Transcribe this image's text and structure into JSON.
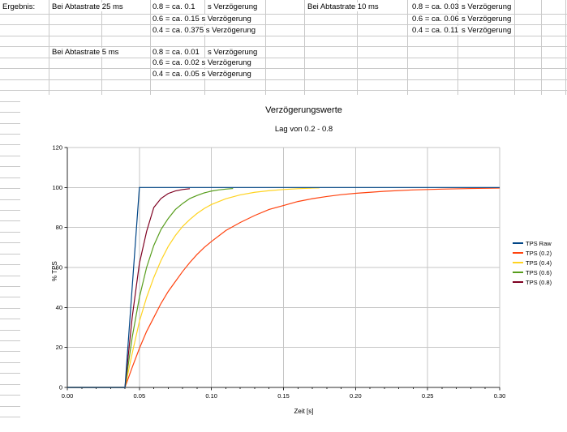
{
  "sheet": {
    "cells": [
      {
        "id": "ergebnis",
        "text": "Ergebnis:"
      },
      {
        "id": "rate25",
        "text": "Bei Abtastrate 25 ms"
      },
      {
        "id": "n25_08",
        "text": "0.8 = ca. 0.1"
      },
      {
        "id": "u25_08",
        "text": "s Verzögerung"
      },
      {
        "id": "l25_06",
        "text": "0.6 = ca. 0.15 s Verzögerung"
      },
      {
        "id": "l25_04",
        "text": "0.4 = ca. 0.375 s Verzögerung"
      },
      {
        "id": "rate10",
        "text": "Bei Abtastrate 10 ms"
      },
      {
        "id": "n10_08",
        "text": "0.8 = ca. 0.03"
      },
      {
        "id": "u10_08",
        "text": "s Verzögerung"
      },
      {
        "id": "n10_06",
        "text": "0.6 = ca. 0.06"
      },
      {
        "id": "u10_06",
        "text": "s Verzögerung"
      },
      {
        "id": "n10_04",
        "text": "0.4 = ca. 0.11"
      },
      {
        "id": "u10_04",
        "text": "s Verzögerung"
      },
      {
        "id": "rate5",
        "text": "Bei Abtastrate 5 ms"
      },
      {
        "id": "n5_08",
        "text": "0.8 = ca. 0.01"
      },
      {
        "id": "u5_08",
        "text": "s Verzögerung"
      },
      {
        "id": "l5_06",
        "text": "0.6 = ca. 0.02 s Verzögerung"
      },
      {
        "id": "l5_04",
        "text": "0.4 = ca. 0.05 s Verzögerung"
      }
    ],
    "grid_color": "#c9c9c9"
  },
  "chart_data": {
    "type": "line",
    "title": "Verzögerungswerte",
    "subtitle": "Lag von 0.2 - 0.8",
    "xlabel": "Zeit [s]",
    "ylabel": "% TPS",
    "xlim": [
      0,
      0.3
    ],
    "ylim": [
      0,
      120
    ],
    "x_tick_values": [
      0,
      0.05,
      0.1,
      0.15,
      0.2,
      0.25,
      0.3
    ],
    "x_tick_labels": [
      "0.00",
      "0.05",
      "0.10",
      "0.15",
      "0.20",
      "0.25",
      "0.30"
    ],
    "x_minor_step": 0.01,
    "y_tick_values": [
      0,
      20,
      40,
      60,
      80,
      100,
      120
    ],
    "y_tick_labels": [
      "0",
      "20",
      "40",
      "60",
      "80",
      "100",
      "120"
    ],
    "grid": true,
    "legend_position": "right",
    "axis_color": "#2b2b2b",
    "grid_line_color": "#c6c6c6",
    "series": [
      {
        "name": "TPS Raw",
        "color": "#004586",
        "points": [
          [
            0,
            0
          ],
          [
            0.04,
            0
          ],
          [
            0.05,
            100
          ],
          [
            0.3,
            100
          ]
        ]
      },
      {
        "name": "TPS (0.2)",
        "color": "#FF420E",
        "points": [
          [
            0,
            0
          ],
          [
            0.04,
            0
          ],
          [
            0.045,
            10
          ],
          [
            0.05,
            19.5
          ],
          [
            0.055,
            28
          ],
          [
            0.06,
            35
          ],
          [
            0.065,
            42
          ],
          [
            0.07,
            48
          ],
          [
            0.075,
            53
          ],
          [
            0.08,
            58
          ],
          [
            0.085,
            62.5
          ],
          [
            0.09,
            66.5
          ],
          [
            0.095,
            70
          ],
          [
            0.1,
            73
          ],
          [
            0.11,
            78.5
          ],
          [
            0.12,
            82.5
          ],
          [
            0.13,
            86
          ],
          [
            0.14,
            89
          ],
          [
            0.15,
            91
          ],
          [
            0.16,
            93
          ],
          [
            0.17,
            94.4
          ],
          [
            0.18,
            95.5
          ],
          [
            0.19,
            96.4
          ],
          [
            0.2,
            97.1
          ],
          [
            0.22,
            98.1
          ],
          [
            0.24,
            98.8
          ],
          [
            0.26,
            99.2
          ],
          [
            0.28,
            99.5
          ],
          [
            0.3,
            99.7
          ]
        ]
      },
      {
        "name": "TPS (0.4)",
        "color": "#FFD320",
        "points": [
          [
            0,
            0
          ],
          [
            0.04,
            0
          ],
          [
            0.045,
            17
          ],
          [
            0.05,
            33
          ],
          [
            0.055,
            45
          ],
          [
            0.06,
            55
          ],
          [
            0.065,
            63.5
          ],
          [
            0.07,
            70.5
          ],
          [
            0.075,
            76
          ],
          [
            0.08,
            80.5
          ],
          [
            0.085,
            84
          ],
          [
            0.09,
            87
          ],
          [
            0.095,
            89.5
          ],
          [
            0.1,
            91.5
          ],
          [
            0.11,
            94.4
          ],
          [
            0.12,
            96.3
          ],
          [
            0.13,
            97.6
          ],
          [
            0.14,
            98.4
          ],
          [
            0.15,
            99
          ],
          [
            0.16,
            99.4
          ],
          [
            0.17,
            99.7
          ],
          [
            0.175,
            99.8
          ]
        ]
      },
      {
        "name": "TPS (0.6)",
        "color": "#579D1C",
        "points": [
          [
            0,
            0
          ],
          [
            0.04,
            0
          ],
          [
            0.045,
            25
          ],
          [
            0.05,
            45
          ],
          [
            0.055,
            60
          ],
          [
            0.06,
            71
          ],
          [
            0.065,
            79
          ],
          [
            0.07,
            84.5
          ],
          [
            0.075,
            89
          ],
          [
            0.08,
            92
          ],
          [
            0.085,
            94.5
          ],
          [
            0.09,
            96
          ],
          [
            0.095,
            97.3
          ],
          [
            0.1,
            98.2
          ],
          [
            0.105,
            98.8
          ],
          [
            0.11,
            99.2
          ],
          [
            0.115,
            99.5
          ]
        ]
      },
      {
        "name": "TPS (0.8)",
        "color": "#7E0021",
        "points": [
          [
            0,
            0
          ],
          [
            0.04,
            0
          ],
          [
            0.045,
            35
          ],
          [
            0.05,
            62
          ],
          [
            0.055,
            78
          ],
          [
            0.06,
            90
          ],
          [
            0.065,
            94.5
          ],
          [
            0.07,
            97
          ],
          [
            0.075,
            98.3
          ],
          [
            0.08,
            99
          ],
          [
            0.085,
            99.4
          ]
        ]
      }
    ]
  }
}
